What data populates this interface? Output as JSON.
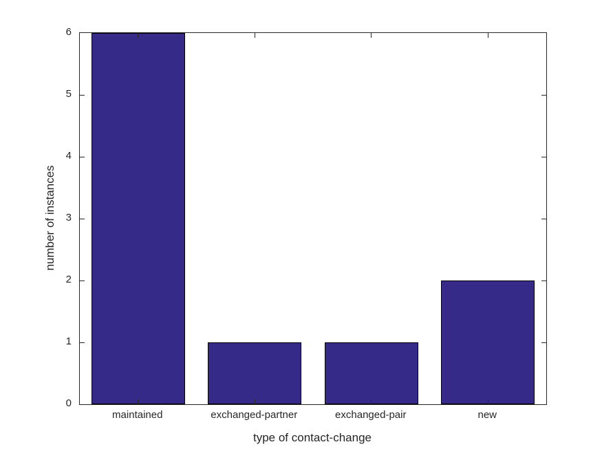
{
  "chart_data": {
    "type": "bar",
    "categories": [
      "maintained",
      "exchanged-partner",
      "exchanged-pair",
      "new"
    ],
    "values": [
      6,
      1,
      1,
      2
    ],
    "title": "",
    "xlabel": "type of contact-change",
    "ylabel": "number of instances",
    "ylim": [
      0,
      6
    ],
    "yticks": [
      0,
      1,
      2,
      3,
      4,
      5,
      6
    ],
    "bar_width_fraction": 0.8,
    "grid": false,
    "legend": null,
    "layout_hints": {
      "box": "on",
      "tick_direction": "in",
      "ticks_mirrored_all_sides": true
    },
    "colors": {
      "bar_fill": "#352a87",
      "bar_edge": "#000000",
      "axis": "#262626",
      "text": "#262626",
      "background": "#ffffff"
    }
  }
}
